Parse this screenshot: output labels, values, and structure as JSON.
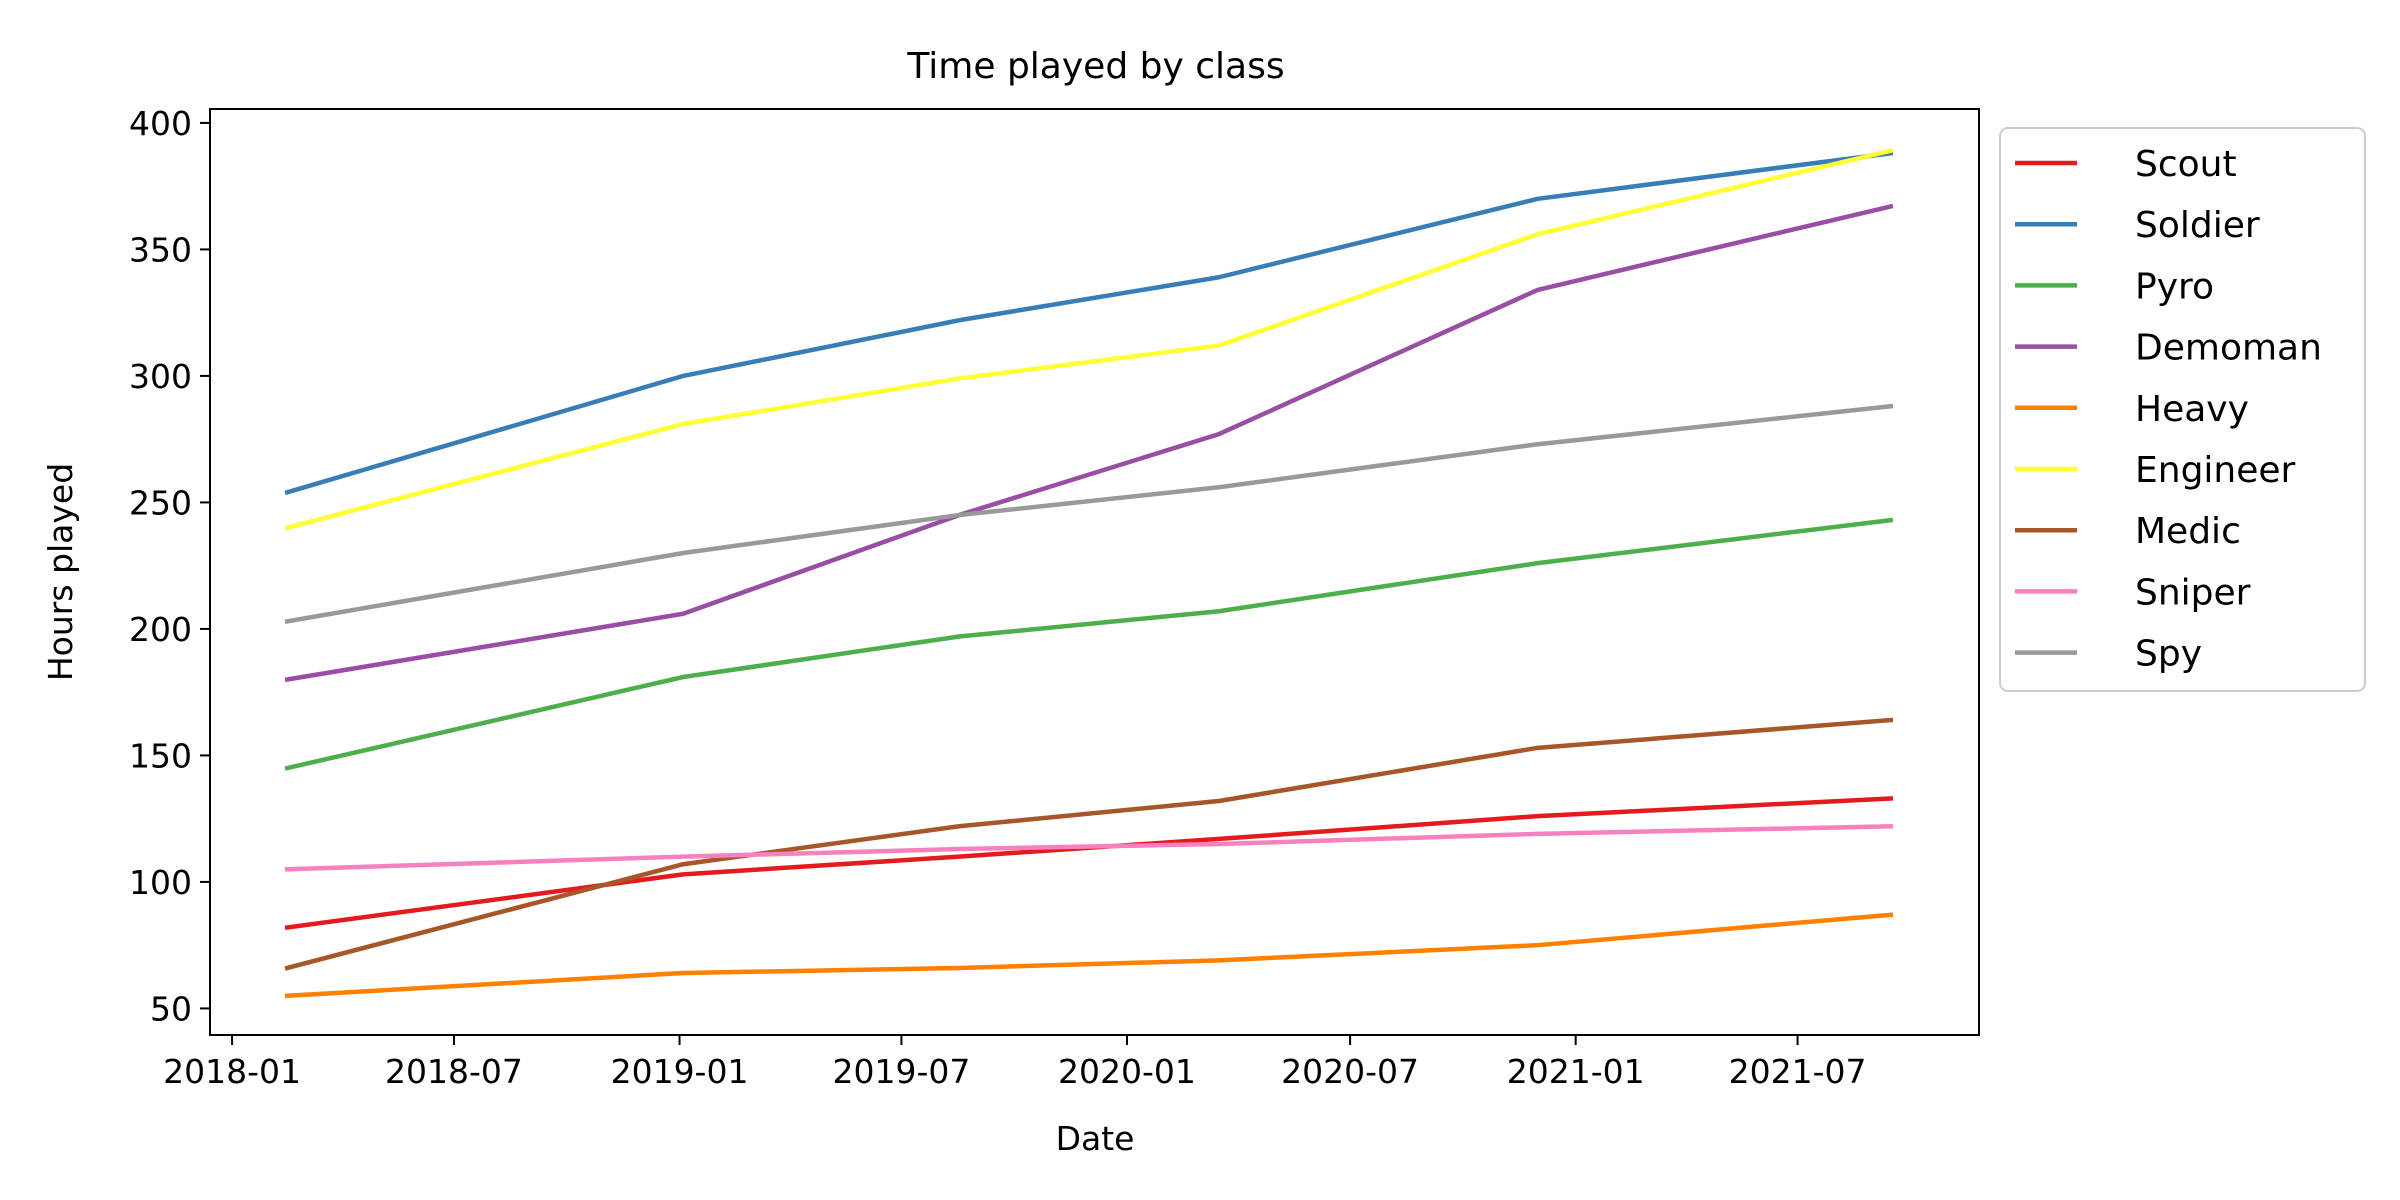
{
  "chart_data": {
    "type": "line",
    "title": "Time played by class",
    "xlabel": "Date",
    "ylabel": "Hours played",
    "x_axis_type": "date",
    "xlim": [
      "2017-12-14",
      "2021-11-26"
    ],
    "ylim": [
      39.5,
      405.5
    ],
    "x_ticks": [
      "2018-01",
      "2018-07",
      "2019-01",
      "2019-07",
      "2020-01",
      "2020-07",
      "2021-01",
      "2021-07"
    ],
    "y_ticks": [
      50,
      100,
      150,
      200,
      250,
      300,
      350,
      400
    ],
    "grid": false,
    "legend_position": "outside-right-top",
    "x": [
      "2018-02-15",
      "2019-01-04",
      "2019-08-17",
      "2020-03-16",
      "2020-12-01",
      "2021-09-15"
    ],
    "series": [
      {
        "name": "Scout",
        "color": "#e41a1c",
        "values": [
          82,
          103,
          110,
          117,
          126,
          133
        ]
      },
      {
        "name": "Soldier",
        "color": "#377eb8",
        "values": [
          254,
          300,
          322,
          339,
          370,
          388
        ]
      },
      {
        "name": "Pyro",
        "color": "#4daf4a",
        "values": [
          145,
          181,
          197,
          207,
          226,
          243
        ]
      },
      {
        "name": "Demoman",
        "color": "#984ea3",
        "values": [
          180,
          206,
          245,
          277,
          334,
          367
        ]
      },
      {
        "name": "Heavy",
        "color": "#ff7f00",
        "values": [
          55,
          64,
          66,
          69,
          75,
          87
        ]
      },
      {
        "name": "Engineer",
        "color": "#ffff33",
        "values": [
          240,
          281,
          299,
          312,
          356,
          389
        ]
      },
      {
        "name": "Medic",
        "color": "#a65628",
        "values": [
          66,
          107,
          122,
          132,
          153,
          164
        ]
      },
      {
        "name": "Sniper",
        "color": "#f781bf",
        "values": [
          105,
          110,
          113,
          115,
          119,
          122
        ]
      },
      {
        "name": "Spy",
        "color": "#999999",
        "values": [
          203,
          230,
          245,
          256,
          273,
          288
        ]
      }
    ]
  }
}
